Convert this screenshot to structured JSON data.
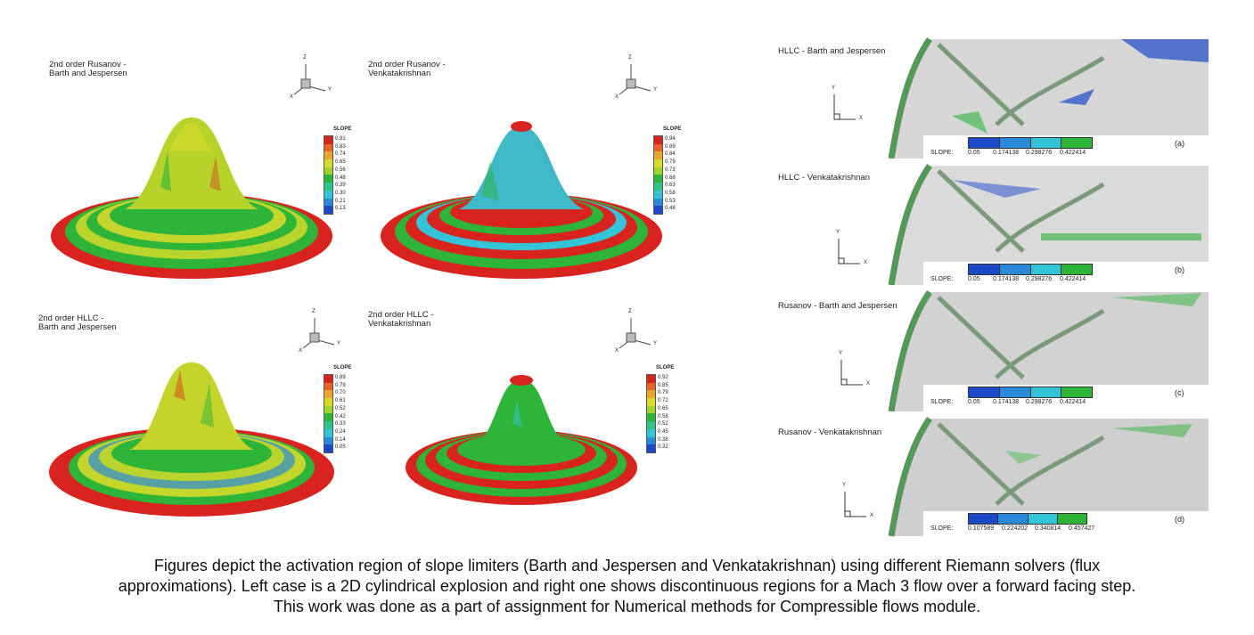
{
  "left_panels": [
    {
      "label_line1": "2nd order Rusanov -",
      "label_line2": "Barth and Jespersen",
      "colorbar_title": "SLOPE",
      "colorbar_values": [
        "0.91",
        "0.83",
        "0.74",
        "0.65",
        "0.56",
        "0.48",
        "0.39",
        "0.30",
        "0.21",
        "0.13"
      ]
    },
    {
      "label_line1": "2nd order Rusanov -",
      "label_line2": "Venkatakrishnan",
      "colorbar_title": "SLOPE",
      "colorbar_values": [
        "0.94",
        "0.89",
        "0.84",
        "0.79",
        "0.73",
        "0.68",
        "0.63",
        "0.58",
        "0.53",
        "0.48"
      ]
    },
    {
      "label_line1": "2nd order HLLC -",
      "label_line2": "Barth and Jespersen",
      "colorbar_title": "SLOPE",
      "colorbar_values": [
        "0.89",
        "0.79",
        "0.70",
        "0.61",
        "0.52",
        "0.42",
        "0.33",
        "0.24",
        "0.14",
        "0.05"
      ]
    },
    {
      "label_line1": "2nd order HLLC -",
      "label_line2": "Venkatakrishnan",
      "colorbar_title": "SLOPE",
      "colorbar_values": [
        "0.92",
        "0.85",
        "0.79",
        "0.72",
        "0.65",
        "0.58",
        "0.52",
        "0.45",
        "0.38",
        "0.32"
      ]
    }
  ],
  "axis_letters": {
    "x": "X",
    "y": "Y",
    "z": "Z"
  },
  "right_panels": [
    {
      "label": "HLLC - Barth and Jespersen",
      "slope_label": "SLOPE:",
      "ticks": [
        "0.05",
        "0.174138",
        "0.298276",
        "0.422414"
      ],
      "sub": "(a)"
    },
    {
      "label": "HLLC - Venkatakrishnan",
      "slope_label": "SLOPE:",
      "ticks": [
        "0.05",
        "0.174138",
        "0.298276",
        "0.422414"
      ],
      "sub": "(b)"
    },
    {
      "label": "Rusanov - Barth and Jespersen",
      "slope_label": "SLOPE:",
      "ticks": [
        "0.05",
        "0.174138",
        "0.298276",
        "0.422414"
      ],
      "sub": "(c)"
    },
    {
      "label": "Rusanov - Venkatakrishnan",
      "slope_label": "SLOPE:",
      "ticks": [
        "0.107589",
        "0.224202",
        "0.340814",
        "0.457427"
      ],
      "sub": "(d)"
    }
  ],
  "caption": {
    "line1": "Figures depict the activation region of slope limiters (Barth and Jespersen and Venkatakrishnan) using different Riemann solvers (flux",
    "line2": "approximations). Left case is a 2D cylindrical explosion and right one shows discontinuous regions for a Mach 3 flow over a forward facing step.",
    "line3": "This work was done as a part of assignment for Numerical methods for Compressible flows module."
  },
  "colors": {
    "red": "#d8231f",
    "green": "#2fb43a",
    "yellow": "#d6dc2a",
    "cyan": "#33c4d8",
    "blue": "#1d48c8",
    "gray": "#9a9a9a"
  }
}
